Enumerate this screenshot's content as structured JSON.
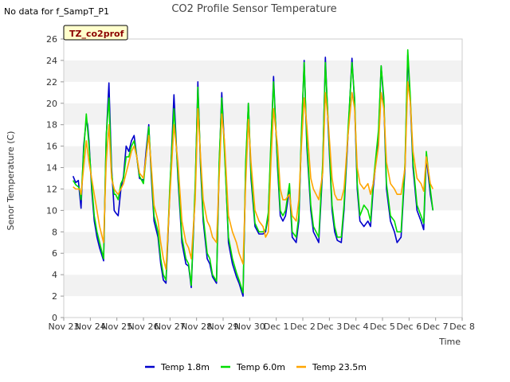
{
  "no_data_text": "No data for f_SampT_P1",
  "site_badge": "TZ_co2prof",
  "chart_data": {
    "type": "line",
    "title": "CO2 Profile Sensor Temperature",
    "xlabel": "Time",
    "ylabel": "Senor Temperature (C)",
    "ylim": [
      0,
      26
    ],
    "yticks": [
      0,
      2,
      4,
      6,
      8,
      10,
      12,
      14,
      16,
      18,
      20,
      22,
      24,
      26
    ],
    "xlim": [
      0,
      15
    ],
    "xticks": [
      0,
      1,
      2,
      3,
      4,
      5,
      6,
      7,
      8,
      9,
      10,
      11,
      12,
      13,
      14,
      15
    ],
    "xtick_labels": [
      "Nov 23",
      "Nov 24",
      "Nov 25",
      "Nov 26",
      "Nov 27",
      "Nov 28",
      "Nov 29",
      "Nov 30",
      "Dec 1",
      "Dec 2",
      "Dec 3",
      "Dec 4",
      "Dec 5",
      "Dec 6",
      "Dec 7",
      "Dec 8"
    ],
    "x_unit_note": "x values are days after Nov 23 00:00",
    "grid": "horizontal bands",
    "legend_placement": "bottom",
    "series": [
      {
        "name": "Temp 1.8m",
        "color": "#0000cc",
        "x": [
          0.35,
          0.45,
          0.55,
          0.6,
          0.65,
          0.75,
          0.85,
          0.9,
          0.95,
          1.05,
          1.15,
          1.25,
          1.35,
          1.5,
          1.6,
          1.7,
          1.8,
          1.9,
          1.95,
          2.05,
          2.15,
          2.25,
          2.35,
          2.45,
          2.55,
          2.65,
          2.75,
          2.85,
          3.0,
          3.1,
          3.2,
          3.3,
          3.4,
          3.55,
          3.65,
          3.75,
          3.85,
          4.0,
          4.15,
          4.3,
          4.45,
          4.6,
          4.7,
          4.8,
          4.95,
          5.05,
          5.15,
          5.25,
          5.4,
          5.5,
          5.6,
          5.75,
          5.85,
          5.95,
          6.05,
          6.2,
          6.35,
          6.5,
          6.6,
          6.75,
          6.85,
          6.95,
          7.05,
          7.2,
          7.35,
          7.5,
          7.6,
          7.7,
          7.8,
          7.9,
          8.05,
          8.15,
          8.25,
          8.35,
          8.5,
          8.6,
          8.75,
          8.85,
          8.95,
          9.05,
          9.15,
          9.3,
          9.4,
          9.5,
          9.6,
          9.75,
          9.85,
          9.95,
          10.1,
          10.2,
          10.3,
          10.45,
          10.55,
          10.7,
          10.85,
          10.95,
          11.05,
          11.15,
          11.3,
          11.45,
          11.55,
          11.65,
          11.85,
          11.95,
          12.05,
          12.15,
          12.3,
          12.45,
          12.55,
          12.7,
          12.85,
          12.95,
          13.05,
          13.15,
          13.3,
          13.45,
          13.55,
          13.65,
          13.8,
          13.9
        ],
        "y": [
          13.2,
          12.6,
          12.8,
          11.5,
          10.2,
          16.0,
          18.5,
          18.0,
          16.5,
          12.0,
          9.0,
          7.5,
          6.5,
          5.3,
          16.8,
          21.9,
          14.0,
          10.0,
          9.8,
          9.5,
          12.0,
          13.2,
          16.0,
          15.5,
          16.5,
          17.0,
          15.0,
          13.0,
          12.8,
          15.5,
          18.0,
          13.0,
          9.0,
          7.5,
          5.0,
          3.5,
          3.2,
          12.0,
          20.8,
          13.0,
          7.0,
          5.0,
          4.8,
          2.8,
          12.0,
          22.0,
          14.0,
          9.0,
          5.5,
          5.0,
          3.8,
          3.2,
          14.0,
          21.0,
          16.0,
          7.0,
          5.0,
          3.8,
          3.2,
          2.0,
          14.0,
          20.0,
          13.0,
          8.5,
          7.8,
          7.8,
          8.0,
          9.5,
          16.0,
          22.5,
          14.0,
          9.5,
          9.0,
          9.5,
          12.0,
          7.5,
          7.0,
          9.0,
          17.0,
          24.0,
          16.0,
          10.0,
          8.0,
          7.5,
          7.0,
          14.0,
          24.3,
          18.0,
          10.0,
          8.0,
          7.2,
          7.0,
          10.0,
          17.0,
          24.2,
          20.0,
          12.0,
          9.0,
          8.5,
          9.0,
          8.5,
          12.0,
          17.0,
          23.5,
          20.0,
          12.0,
          9.0,
          8.0,
          7.0,
          7.5,
          14.0,
          24.5,
          20.0,
          14.0,
          10.0,
          9.0,
          8.2,
          15.0,
          11.5,
          10.0
        ]
      },
      {
        "name": "Temp 6.0m",
        "color": "#00dd00",
        "x": [
          0.35,
          0.45,
          0.55,
          0.6,
          0.65,
          0.75,
          0.85,
          0.9,
          0.95,
          1.05,
          1.15,
          1.25,
          1.35,
          1.5,
          1.6,
          1.7,
          1.8,
          1.9,
          1.95,
          2.05,
          2.15,
          2.25,
          2.35,
          2.45,
          2.55,
          2.65,
          2.75,
          2.85,
          3.0,
          3.1,
          3.2,
          3.3,
          3.4,
          3.55,
          3.65,
          3.75,
          3.85,
          4.0,
          4.15,
          4.3,
          4.45,
          4.6,
          4.7,
          4.8,
          4.95,
          5.05,
          5.15,
          5.25,
          5.4,
          5.5,
          5.6,
          5.75,
          5.85,
          5.95,
          6.05,
          6.2,
          6.35,
          6.5,
          6.6,
          6.75,
          6.85,
          6.95,
          7.05,
          7.2,
          7.35,
          7.5,
          7.6,
          7.7,
          7.8,
          7.9,
          8.05,
          8.15,
          8.25,
          8.35,
          8.5,
          8.6,
          8.75,
          8.85,
          8.95,
          9.05,
          9.15,
          9.3,
          9.4,
          9.5,
          9.6,
          9.75,
          9.85,
          9.95,
          10.1,
          10.2,
          10.3,
          10.45,
          10.55,
          10.7,
          10.85,
          10.95,
          11.05,
          11.15,
          11.3,
          11.45,
          11.55,
          11.65,
          11.85,
          11.95,
          12.05,
          12.15,
          12.3,
          12.45,
          12.55,
          12.7,
          12.85,
          12.95,
          13.05,
          13.15,
          13.3,
          13.45,
          13.55,
          13.65,
          13.8,
          13.9
        ],
        "y": [
          12.8,
          12.4,
          12.2,
          12.0,
          11.0,
          15.5,
          19.0,
          17.5,
          16.0,
          12.5,
          9.5,
          8.0,
          7.0,
          5.5,
          17.0,
          20.5,
          13.5,
          11.5,
          11.5,
          11.0,
          12.5,
          13.0,
          15.0,
          15.0,
          16.0,
          16.5,
          15.0,
          13.2,
          12.5,
          15.0,
          17.8,
          13.5,
          9.5,
          8.0,
          5.5,
          4.0,
          3.5,
          12.5,
          19.5,
          13.5,
          7.5,
          5.5,
          5.0,
          3.0,
          12.5,
          21.5,
          14.5,
          9.5,
          6.0,
          5.5,
          4.0,
          3.4,
          14.5,
          20.5,
          15.5,
          7.5,
          5.5,
          4.2,
          3.5,
          2.3,
          14.5,
          20.0,
          13.5,
          8.8,
          8.0,
          8.0,
          8.2,
          9.8,
          16.5,
          22.0,
          14.5,
          10.0,
          9.5,
          10.0,
          12.5,
          8.0,
          7.5,
          9.5,
          17.5,
          23.8,
          16.5,
          10.5,
          8.5,
          8.0,
          7.5,
          14.5,
          23.8,
          18.5,
          10.5,
          8.5,
          7.5,
          7.5,
          10.5,
          17.5,
          23.8,
          20.5,
          12.5,
          9.5,
          10.5,
          10.0,
          9.0,
          12.5,
          17.5,
          23.5,
          20.5,
          12.5,
          9.5,
          9.0,
          8.0,
          8.0,
          14.5,
          25.0,
          20.5,
          14.5,
          10.5,
          9.5,
          8.8,
          15.5,
          12.0,
          10.0
        ]
      },
      {
        "name": "Temp 23.5m",
        "color": "#ffa500",
        "x": [
          0.35,
          0.45,
          0.55,
          0.6,
          0.65,
          0.75,
          0.85,
          0.9,
          0.95,
          1.05,
          1.15,
          1.25,
          1.35,
          1.5,
          1.6,
          1.7,
          1.8,
          1.9,
          1.95,
          2.05,
          2.15,
          2.25,
          2.35,
          2.45,
          2.55,
          2.65,
          2.75,
          2.85,
          3.0,
          3.1,
          3.2,
          3.3,
          3.4,
          3.55,
          3.65,
          3.75,
          3.85,
          4.0,
          4.15,
          4.3,
          4.45,
          4.6,
          4.7,
          4.8,
          4.95,
          5.05,
          5.15,
          5.25,
          5.4,
          5.5,
          5.6,
          5.75,
          5.85,
          5.95,
          6.05,
          6.2,
          6.35,
          6.5,
          6.6,
          6.75,
          6.85,
          6.95,
          7.05,
          7.2,
          7.35,
          7.5,
          7.6,
          7.7,
          7.8,
          7.9,
          8.05,
          8.15,
          8.25,
          8.35,
          8.5,
          8.6,
          8.75,
          8.85,
          8.95,
          9.05,
          9.15,
          9.3,
          9.4,
          9.5,
          9.6,
          9.75,
          9.85,
          9.95,
          10.1,
          10.2,
          10.3,
          10.45,
          10.55,
          10.7,
          10.85,
          10.95,
          11.05,
          11.15,
          11.3,
          11.45,
          11.55,
          11.65,
          11.85,
          11.95,
          12.05,
          12.15,
          12.3,
          12.45,
          12.55,
          12.7,
          12.85,
          12.95,
          13.05,
          13.15,
          13.3,
          13.45,
          13.55,
          13.65,
          13.8,
          13.9
        ],
        "y": [
          12.2,
          12.0,
          12.0,
          12.0,
          11.5,
          14.0,
          16.5,
          15.5,
          14.5,
          13.0,
          11.5,
          10.0,
          8.5,
          7.0,
          14.5,
          18.0,
          13.0,
          12.0,
          11.8,
          11.5,
          12.0,
          12.5,
          13.5,
          14.5,
          15.5,
          16.0,
          15.0,
          13.5,
          13.0,
          15.0,
          17.0,
          14.0,
          10.5,
          9.0,
          7.0,
          5.5,
          4.5,
          11.5,
          18.0,
          14.5,
          9.0,
          7.0,
          6.5,
          5.5,
          11.0,
          19.5,
          15.0,
          11.0,
          9.0,
          8.5,
          7.5,
          7.0,
          13.0,
          19.0,
          16.5,
          9.5,
          8.0,
          7.0,
          6.0,
          5.0,
          12.5,
          18.5,
          14.5,
          10.0,
          9.0,
          8.5,
          7.5,
          8.0,
          14.5,
          19.5,
          16.0,
          12.0,
          11.0,
          11.0,
          11.5,
          9.5,
          9.0,
          11.0,
          16.0,
          20.5,
          18.0,
          13.0,
          12.0,
          11.5,
          11.0,
          13.5,
          21.0,
          18.5,
          13.0,
          11.5,
          11.0,
          11.0,
          12.0,
          17.0,
          21.0,
          19.5,
          14.0,
          12.5,
          12.0,
          12.5,
          11.5,
          12.5,
          16.0,
          21.0,
          19.5,
          14.5,
          12.5,
          12.0,
          11.5,
          11.5,
          14.0,
          22.0,
          20.0,
          15.5,
          13.0,
          12.5,
          11.8,
          15.0,
          12.5,
          12.0
        ]
      }
    ]
  }
}
